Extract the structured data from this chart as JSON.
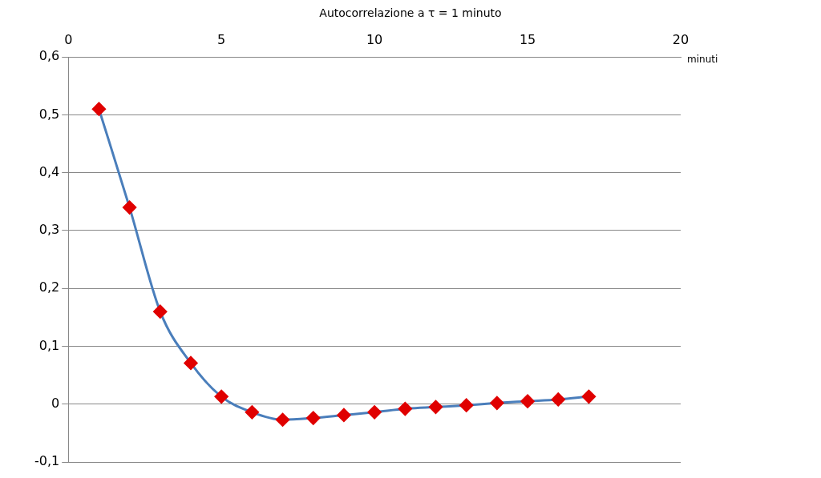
{
  "chart_data": {
    "type": "line",
    "title": "Autocorrelazione a τ = 1 minuto",
    "xlabel": "minuti",
    "x": [
      1,
      2,
      3,
      4,
      5,
      6,
      7,
      8,
      9,
      10,
      11,
      12,
      13,
      14,
      15,
      16,
      17
    ],
    "series": [
      {
        "color": "#4a7ebb",
        "colors": [
          "#e00000",
          "#e00000",
          "#e00000",
          "#e00000",
          "#e00000",
          "#e00000",
          "#e00000",
          "#e00000",
          "#e00000",
          "#e00000",
          "#e00000",
          "#e00000",
          "#e00000",
          "#e00000",
          "#e00000",
          "#e00000",
          "#e00000"
        ],
        "values": [
          0.51,
          0.34,
          0.16,
          0.071,
          0.013,
          -0.014,
          -0.027,
          -0.024,
          -0.019,
          -0.014,
          -0.008,
          -0.005,
          -0.002,
          0.002,
          0.005,
          0.008,
          0.013
        ]
      }
    ],
    "xlim": [
      0,
      20
    ],
    "xticks": [
      0,
      5,
      10,
      15,
      20
    ],
    "ylim": [
      -0.1,
      0.6
    ],
    "yticks": [
      {
        "value": -0.1,
        "label": "-0,1"
      },
      0,
      {
        "value": 0.1,
        "label": "0,1"
      },
      {
        "value": 0.2,
        "label": "0,2"
      },
      {
        "value": 0.3,
        "label": "0,3"
      },
      {
        "value": 0.4,
        "label": "0,4"
      },
      {
        "value": 0.5,
        "label": "0,5"
      },
      {
        "value": 0.6,
        "label": "0,6"
      }
    ],
    "grid": "y",
    "marker": "diamond",
    "line_style": "solid",
    "legend": false
  }
}
